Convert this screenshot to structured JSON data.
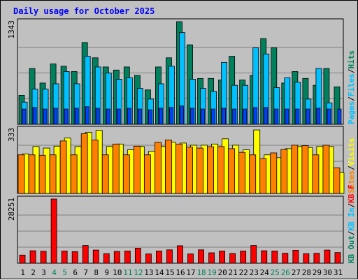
{
  "chart_data": {
    "type": "bar",
    "title": "Daily usage for October 2025",
    "categories": [
      "1",
      "2",
      "3",
      "4",
      "5",
      "6",
      "7",
      "8",
      "9",
      "10",
      "11",
      "12",
      "13",
      "14",
      "15",
      "16",
      "17",
      "18",
      "19",
      "20",
      "21",
      "22",
      "23",
      "24",
      "25",
      "26",
      "27",
      "28",
      "29",
      "30",
      "31"
    ],
    "weekend_days": [
      4,
      5,
      11,
      12,
      18,
      19,
      25,
      26
    ],
    "colors": {
      "hits": "#00805c",
      "files": "#00c0ff",
      "pages": "#0040ff",
      "visits": "#ffff00",
      "sites": "#ff8000",
      "kbytes": "#ff0000",
      "title": "#0000ff",
      "weekend_label": "#00805c",
      "weekday_label": "#000000"
    },
    "panels": [
      {
        "id": "hits-files-pages",
        "max_label": "1343",
        "max": 1343,
        "legend": [
          {
            "text": "Hits",
            "color": "#00805c"
          },
          {
            "text": "/",
            "color": "#000000"
          },
          {
            "text": "Files",
            "color": "#00c0ff"
          },
          {
            "text": "/",
            "color": "#000000"
          },
          {
            "text": "Pages",
            "color": "#00c0ff"
          }
        ],
        "series": [
          {
            "name": "Hits",
            "color": "#00805c",
            "values": [
              380,
              730,
              540,
              790,
              760,
              690,
              1070,
              870,
              750,
              710,
              750,
              640,
              450,
              750,
              870,
              1343,
              1040,
              600,
              600,
              580,
              890,
              580,
              640,
              1120,
              1000,
              540,
              690,
              600,
              510,
              730,
              490
            ]
          },
          {
            "name": "Files",
            "color": "#00c0ff",
            "values": [
              290,
              460,
              460,
              530,
              690,
              530,
              890,
              750,
              670,
              590,
              610,
              470,
              330,
              530,
              760,
              1200,
              590,
              470,
              430,
              810,
              510,
              510,
              1000,
              920,
              480,
              610,
              550,
              330,
              730,
              280,
              null
            ]
          },
          {
            "name": "Pages",
            "color": "#0040ff",
            "values": [
              200,
              220,
              200,
              210,
              200,
              210,
              230,
              210,
              200,
              200,
              210,
              200,
              190,
              210,
              220,
              240,
              210,
              200,
              200,
              210,
              200,
              200,
              220,
              220,
              200,
              200,
              200,
              200,
              210,
              200,
              200
            ]
          }
        ]
      },
      {
        "id": "visits-sites",
        "max_label": "333",
        "max": 333,
        "legend": [
          {
            "text": "Visits",
            "color": "#ffff00"
          },
          {
            "text": "/",
            "color": "#000000"
          },
          {
            "text": "Sites",
            "color": "#ff8000"
          }
        ],
        "series": [
          {
            "name": "Visits",
            "color": "#ffff00",
            "values": [
              205,
              243,
              235,
              245,
              287,
              243,
              317,
              327,
              243,
              256,
              226,
              243,
              218,
              243,
              265,
              261,
              250,
              250,
              256,
              283,
              250,
              226,
              329,
              200,
              185,
              232,
              243,
              238,
              243,
              243,
              108
            ]
          },
          {
            "name": "Sites",
            "color": "#ff8000",
            "values": [
              200,
              200,
              198,
              200,
              272,
              200,
              310,
              277,
              200,
              256,
              200,
              245,
              200,
              265,
              277,
              256,
              240,
              235,
              242,
              243,
              232,
              213,
              200,
              181,
              210,
              228,
              250,
              248,
              200,
              250,
              133
            ]
          }
        ]
      },
      {
        "id": "kbytes",
        "max_label": "28251",
        "max": 28251,
        "legend": [
          {
            "text": "KB F",
            "color": "#ff0000"
          },
          {
            "text": "/",
            "color": "#000000"
          },
          {
            "text": "KB In",
            "color": "#00c0ff"
          },
          {
            "text": "/",
            "color": "#000000"
          },
          {
            "text": "KB Out",
            "color": "#00805c"
          }
        ],
        "series": [
          {
            "name": "KB F",
            "color": "#ff0000",
            "values": [
              3600,
              5500,
              5300,
              28251,
              5400,
              5100,
              7800,
              5800,
              4200,
              5200,
              5400,
              6600,
              4100,
              5400,
              5900,
              7700,
              4100,
              5900,
              4600,
              5400,
              4300,
              5400,
              7800,
              5500,
              5400,
              4400,
              5700,
              4200,
              4400,
              5800,
              4700
            ]
          }
        ]
      }
    ]
  }
}
